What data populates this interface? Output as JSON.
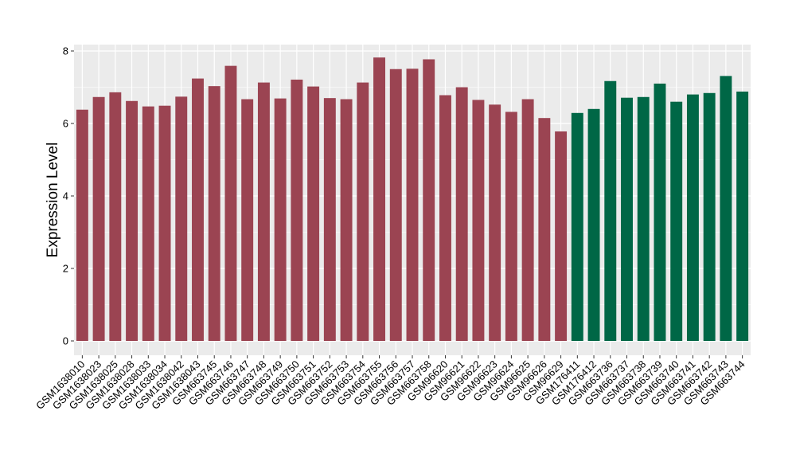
{
  "chart_data": {
    "type": "bar",
    "title": "",
    "xlabel": "",
    "ylabel": "Expression Level",
    "ylim": [
      0,
      8.3
    ],
    "yticks": [
      0,
      2,
      4,
      6,
      8
    ],
    "grid": true,
    "legend": "none",
    "colors": {
      "group1": "#9B4452",
      "group2": "#006746",
      "panel": "#EBEBEB",
      "grid": "#FFFFFF"
    },
    "categories": [
      "GSM1638010",
      "GSM1638023",
      "GSM1638025",
      "GSM1638028",
      "GSM1638033",
      "GSM1638034",
      "GSM1638042",
      "GSM1638043",
      "GSM663745",
      "GSM663746",
      "GSM663747",
      "GSM663748",
      "GSM663749",
      "GSM663750",
      "GSM663751",
      "GSM663752",
      "GSM663753",
      "GSM663754",
      "GSM663755",
      "GSM663756",
      "GSM663757",
      "GSM663758",
      "GSM96620",
      "GSM96621",
      "GSM96622",
      "GSM96623",
      "GSM96624",
      "GSM96625",
      "GSM96626",
      "GSM96629",
      "GSM176411",
      "GSM176412",
      "GSM663736",
      "GSM663737",
      "GSM663738",
      "GSM663739",
      "GSM663740",
      "GSM663741",
      "GSM663742",
      "GSM663743",
      "GSM663744"
    ],
    "values": [
      6.38,
      6.73,
      6.86,
      6.62,
      6.47,
      6.49,
      6.74,
      7.24,
      7.03,
      7.59,
      6.67,
      7.13,
      6.69,
      7.21,
      7.02,
      6.7,
      6.67,
      7.13,
      7.82,
      7.5,
      7.51,
      7.77,
      6.78,
      7.0,
      6.65,
      6.52,
      6.32,
      6.67,
      6.15,
      5.78,
      6.29,
      6.4,
      7.17,
      6.71,
      6.73,
      7.1,
      6.6,
      6.8,
      6.84,
      7.31,
      6.88
    ],
    "groups": [
      1,
      1,
      1,
      1,
      1,
      1,
      1,
      1,
      1,
      1,
      1,
      1,
      1,
      1,
      1,
      1,
      1,
      1,
      1,
      1,
      1,
      1,
      1,
      1,
      1,
      1,
      1,
      1,
      1,
      1,
      2,
      2,
      2,
      2,
      2,
      2,
      2,
      2,
      2,
      2,
      2
    ]
  }
}
